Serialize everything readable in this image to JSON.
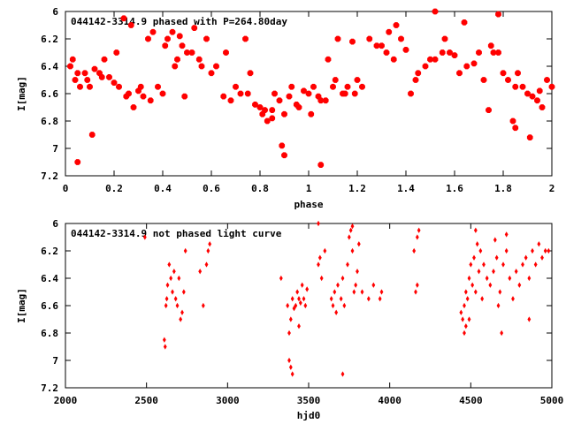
{
  "colors": {
    "series": "#ff0000",
    "axis": "#000000",
    "background": "#ffffff"
  },
  "chart_data": [
    {
      "type": "scatter",
      "title": "044142-3314.9 phased with P=264.80day",
      "xlabel": "phase",
      "ylabel": "I[mag]",
      "xlim": [
        0,
        2
      ],
      "ylim": [
        7.2,
        6
      ],
      "y_inverted": true,
      "grid": false,
      "xticks": [
        "0",
        "0.2",
        "0.4",
        "0.6",
        "0.8",
        "1",
        "1.2",
        "1.4",
        "1.6",
        "1.8",
        "2"
      ],
      "yticks": [
        "6",
        "6.2",
        "6.4",
        "6.6",
        "6.8",
        "7",
        "7.2"
      ],
      "marker": "star",
      "series": [
        {
          "x": [
            0.05,
            0.1,
            0.15,
            0.2,
            0.25,
            0.3,
            0.35,
            0.4,
            0.45,
            0.5,
            0.55,
            0.6,
            0.65,
            0.7,
            0.75,
            0.8,
            0.85,
            0.9,
            0.95,
            1.0,
            1.05,
            1.1,
            1.15,
            1.2,
            1.25,
            1.3,
            1.35,
            1.4,
            1.45,
            1.5,
            1.55,
            1.6,
            1.65,
            1.7,
            1.75,
            1.8,
            1.85,
            1.9,
            1.95,
            2.0,
            0.02,
            0.04,
            0.08,
            0.12,
            0.18,
            0.22,
            0.28,
            0.32,
            0.38,
            0.42,
            0.48,
            0.52,
            0.58,
            0.62,
            0.68,
            0.72,
            0.78,
            0.82,
            0.88,
            0.92,
            0.98,
            1.02,
            1.08,
            1.12,
            1.18,
            1.22,
            1.28,
            1.32,
            1.38,
            1.42,
            1.48,
            1.52,
            1.58,
            1.62,
            1.68,
            1.72,
            1.78,
            1.82,
            1.88,
            1.92,
            1.98,
            0.05,
            0.11,
            0.24,
            0.27,
            0.44,
            0.47,
            0.53,
            0.81,
            0.85,
            0.89,
            0.9,
            1.05,
            1.52,
            1.78,
            1.85,
            1.91,
            0.03,
            0.06,
            0.09,
            0.14,
            0.16,
            0.21,
            0.26,
            0.31,
            0.34,
            0.36,
            0.41,
            0.46,
            0.49,
            0.56,
            0.66,
            0.74,
            0.76,
            0.83,
            0.86,
            0.93,
            0.96,
            1.01,
            1.04,
            1.07,
            1.11,
            1.14,
            1.16,
            1.19,
            1.33,
            1.36,
            1.44,
            1.56,
            1.64,
            1.74,
            1.76,
            1.84,
            1.86,
            1.94,
            1.96
          ],
          "y": [
            6.45,
            6.55,
            6.48,
            6.52,
            6.62,
            6.58,
            6.65,
            6.6,
            6.4,
            6.3,
            6.35,
            6.45,
            6.62,
            6.55,
            6.6,
            6.7,
            6.72,
            6.75,
            6.68,
            6.6,
            6.65,
            6.55,
            6.6,
            6.5,
            6.2,
            6.25,
            6.35,
            6.28,
            6.45,
            6.35,
            6.3,
            6.32,
            6.4,
            6.3,
            6.25,
            6.45,
            6.55,
            6.6,
            6.58,
            6.55,
            6.4,
            6.5,
            6.45,
            6.42,
            6.48,
            6.55,
            6.7,
            6.62,
            6.55,
            6.2,
            6.25,
            6.3,
            6.2,
            6.4,
            6.65,
            6.6,
            6.68,
            6.72,
            6.65,
            6.62,
            6.58,
            6.55,
            6.35,
            6.2,
            6.22,
            6.55,
            6.25,
            6.3,
            6.2,
            6.6,
            6.4,
            6.35,
            6.3,
            6.45,
            6.38,
            6.5,
            6.3,
            6.5,
            6.55,
            6.62,
            6.5,
            7.1,
            6.9,
            6.05,
            6.1,
            6.15,
            6.18,
            6.12,
            6.75,
            6.78,
            6.98,
            7.05,
            7.12,
            6.0,
            6.02,
            6.85,
            6.92,
            6.35,
            6.55,
            6.5,
            6.45,
            6.35,
            6.3,
            6.6,
            6.55,
            6.2,
            6.15,
            6.25,
            6.35,
            6.62,
            6.4,
            6.3,
            6.2,
            6.45,
            6.8,
            6.6,
            6.55,
            6.7,
            6.75,
            6.62,
            6.65,
            6.5,
            6.6,
            6.55,
            6.6,
            6.15,
            6.1,
            6.5,
            6.2,
            6.08,
            6.72,
            6.3,
            6.8,
            6.45,
            6.65,
            6.7
          ]
        }
      ]
    },
    {
      "type": "scatter",
      "title": "044142-3314.9 not phased light curve",
      "xlabel": "hjd0",
      "ylabel": "I[mag]",
      "xlim": [
        2000,
        5000
      ],
      "ylim": [
        7.2,
        6
      ],
      "y_inverted": true,
      "grid": false,
      "xticks": [
        "2000",
        "2500",
        "3000",
        "3500",
        "4000",
        "4500",
        "5000"
      ],
      "yticks": [
        "6",
        "6.2",
        "6.4",
        "6.6",
        "6.8",
        "7",
        "7.2"
      ],
      "marker": "diamond",
      "series": [
        {
          "x": [
            2490,
            2610,
            2615,
            2620,
            2625,
            2630,
            2640,
            2650,
            2660,
            2670,
            2680,
            2690,
            2700,
            2710,
            2720,
            2730,
            2740,
            2830,
            2850,
            2870,
            2880,
            2890,
            3330,
            3370,
            3380,
            3390,
            3400,
            3410,
            3420,
            3430,
            3440,
            3450,
            3460,
            3470,
            3480,
            3490,
            3560,
            3570,
            3580,
            3600,
            3640,
            3650,
            3660,
            3670,
            3680,
            3700,
            3710,
            3720,
            3740,
            3750,
            3760,
            3770,
            3780,
            3790,
            3800,
            3810,
            3830,
            3870,
            3900,
            3940,
            3950,
            4150,
            4160,
            4170,
            4180,
            4440,
            4450,
            4460,
            4470,
            4480,
            4490,
            4500,
            4510,
            4520,
            4530,
            4540,
            4550,
            4560,
            4570,
            4580,
            4600,
            4620,
            4640,
            4660,
            4670,
            4680,
            4700,
            4720,
            4740,
            4760,
            4780,
            4800,
            4820,
            4840,
            4860,
            4880,
            4900,
            4920,
            4940,
            4960,
            4980,
            3380,
            3390,
            3400,
            3440,
            3710,
            4460,
            4470,
            4490,
            4690,
            4860,
            3560,
            3770,
            4170,
            4530,
            4650,
            4720
          ],
          "y": [
            6.1,
            6.85,
            6.9,
            6.6,
            6.55,
            6.45,
            6.3,
            6.4,
            6.5,
            6.35,
            6.55,
            6.6,
            6.4,
            6.7,
            6.65,
            6.5,
            6.2,
            6.35,
            6.6,
            6.3,
            6.2,
            6.15,
            6.4,
            6.6,
            6.8,
            6.7,
            6.55,
            6.62,
            6.6,
            6.5,
            6.55,
            6.58,
            6.45,
            6.55,
            6.6,
            6.48,
            6.3,
            6.25,
            6.4,
            6.2,
            6.55,
            6.6,
            6.5,
            6.65,
            6.45,
            6.55,
            6.4,
            6.6,
            6.3,
            6.1,
            6.05,
            6.2,
            6.5,
            6.45,
            6.35,
            6.15,
            6.5,
            6.55,
            6.45,
            6.55,
            6.5,
            6.2,
            6.5,
            6.45,
            6.05,
            6.65,
            6.7,
            6.6,
            6.5,
            6.55,
            6.4,
            6.3,
            6.45,
            6.25,
            6.5,
            6.15,
            6.35,
            6.2,
            6.55,
            6.3,
            6.4,
            6.45,
            6.35,
            6.25,
            6.6,
            6.5,
            6.3,
            6.2,
            6.4,
            6.55,
            6.35,
            6.45,
            6.3,
            6.25,
            6.4,
            6.2,
            6.3,
            6.15,
            6.25,
            6.2,
            6.2,
            7.0,
            7.05,
            7.1,
            6.75,
            7.1,
            6.8,
            6.75,
            6.7,
            6.8,
            6.7,
            6.0,
            6.02,
            6.1,
            6.05,
            6.12,
            6.08
          ]
        }
      ]
    }
  ]
}
